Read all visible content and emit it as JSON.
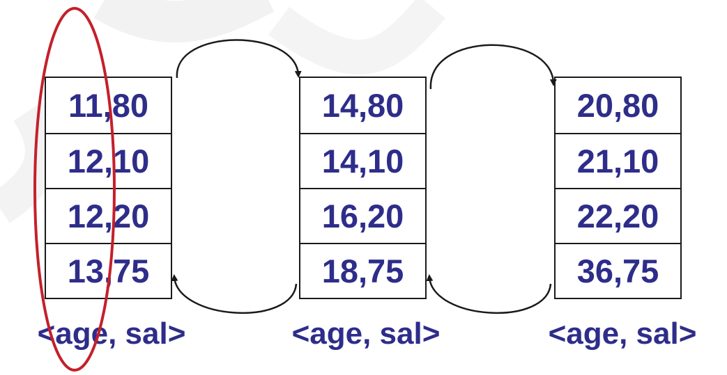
{
  "diagram": {
    "pages": [
      {
        "entries": [
          "11,80",
          "12,10",
          "12,20",
          "13,75"
        ],
        "caption": "<age, sal>"
      },
      {
        "entries": [
          "14,80",
          "14,10",
          "16,20",
          "18,75"
        ],
        "caption": "<age, sal>"
      },
      {
        "entries": [
          "20,80",
          "21,10",
          "22,20",
          "36,75"
        ],
        "caption": "<age, sal>"
      }
    ],
    "colors": {
      "entry_text": "#2e2d8a",
      "border": "#1a1a1a",
      "highlight_ellipse": "#c4202a",
      "link_arrow": "#1a1a1a"
    }
  }
}
